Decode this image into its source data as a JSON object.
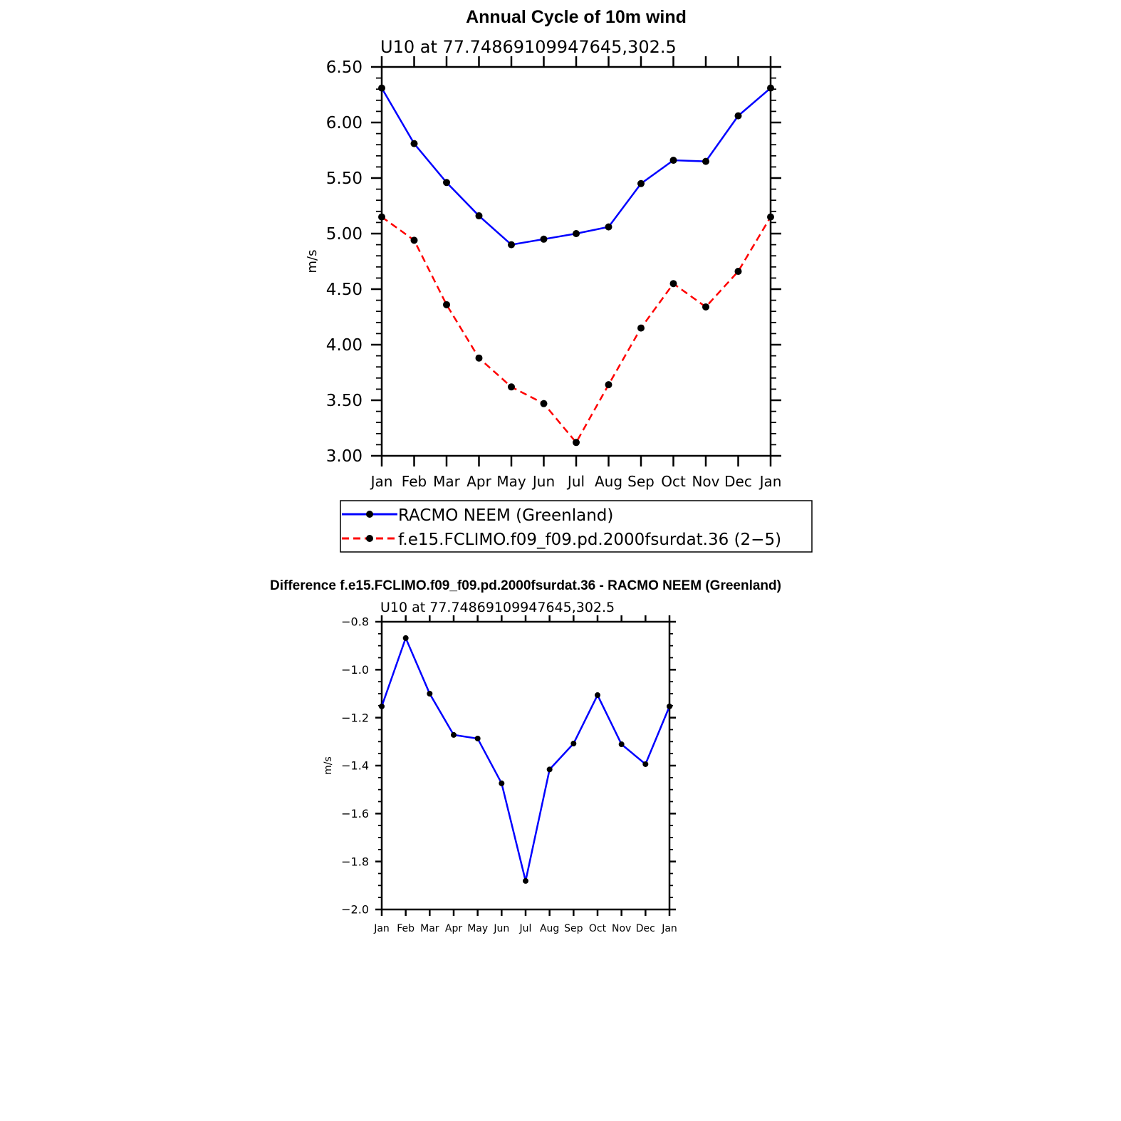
{
  "chart_data": [
    {
      "type": "line",
      "title": "Annual Cycle of 10m wind",
      "subtitle": "U10 at 77.74869109947645,302.5",
      "xlabel": "",
      "ylabel": "m/s",
      "categories": [
        "Jan",
        "Feb",
        "Mar",
        "Apr",
        "May",
        "Jun",
        "Jul",
        "Aug",
        "Sep",
        "Oct",
        "Nov",
        "Dec",
        "Jan"
      ],
      "ylim": [
        3.0,
        6.5
      ],
      "yticks": [
        "3.00",
        "3.50",
        "4.00",
        "4.50",
        "5.00",
        "5.50",
        "6.00",
        "6.50"
      ],
      "grid": false,
      "legend_placement": "bottom",
      "series": [
        {
          "name": "RACMO NEEM (Greenland)",
          "color": "#0000ff",
          "dash": "solid",
          "values": [
            6.31,
            5.81,
            5.46,
            5.16,
            4.9,
            4.95,
            5.0,
            5.06,
            5.45,
            5.66,
            5.65,
            6.06,
            6.31
          ]
        },
        {
          "name": "f.e15.FCLIMO.f09_f09.pd.2000fsurdat.36 (2−5)",
          "color": "#ff0000",
          "dash": "dashed",
          "values": [
            5.15,
            4.94,
            4.36,
            3.88,
            3.62,
            3.47,
            3.12,
            3.64,
            4.15,
            4.55,
            4.34,
            4.66,
            5.15
          ]
        }
      ]
    },
    {
      "type": "line",
      "title": "Difference f.e15.FCLIMO.f09_f09.pd.2000fsurdat.36 - RACMO NEEM (Greenland)",
      "subtitle": "U10 at 77.74869109947645,302.5",
      "xlabel": "",
      "ylabel": "m/s",
      "categories": [
        "Jan",
        "Feb",
        "Mar",
        "Apr",
        "May",
        "Jun",
        "Jul",
        "Aug",
        "Sep",
        "Oct",
        "Nov",
        "Dec",
        "Jan"
      ],
      "ylim": [
        -2.0,
        -0.8
      ],
      "yticks": [
        "−2.0",
        "−1.8",
        "−1.6",
        "−1.4",
        "−1.2",
        "−1.0",
        "−0.8"
      ],
      "grid": false,
      "series": [
        {
          "color": "#0000ff",
          "dash": "solid",
          "values": [
            -1.153,
            -0.868,
            -1.1,
            -1.272,
            -1.287,
            -1.474,
            -1.881,
            -1.416,
            -1.308,
            -1.106,
            -1.311,
            -1.394,
            -1.153
          ]
        }
      ]
    }
  ]
}
